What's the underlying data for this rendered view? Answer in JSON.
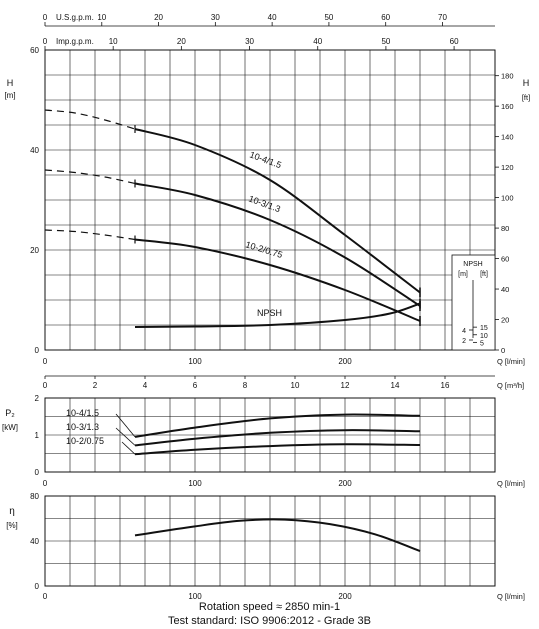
{
  "chart_data": [
    {
      "type": "line",
      "panel": "head",
      "ylabel": "H",
      "yunit": "[m]",
      "ylim": [
        0,
        60
      ],
      "yticks": [
        0,
        20,
        40,
        60
      ],
      "y2label": "H",
      "y2unit": "[ft]",
      "y2lim": [
        0,
        196.85
      ],
      "y2ticks": [
        0,
        20,
        40,
        60,
        80,
        100,
        120,
        140,
        160,
        180
      ],
      "xlabel": "Q [l/min]",
      "xlim": [
        0,
        300
      ],
      "xticks": [
        0,
        100,
        200
      ],
      "top_axis_1": {
        "label": "U.S.g.p.m.",
        "lim": [
          0,
          79.25
        ],
        "ticks": [
          0,
          10,
          20,
          30,
          40,
          50,
          60,
          70
        ]
      },
      "top_axis_2": {
        "label": "Imp.g.p.m.",
        "lim": [
          0,
          66.0
        ],
        "ticks": [
          0,
          10,
          20,
          30,
          40,
          50,
          60
        ]
      },
      "bottom_axis_2": {
        "label": "Q [m³/h]",
        "lim": [
          0,
          18
        ],
        "ticks": [
          0,
          2,
          4,
          6,
          8,
          10,
          12,
          14,
          16
        ]
      },
      "series": [
        {
          "name": "10-4/1.5",
          "dashed": {
            "x": [
              0,
              20,
              40,
              60
            ],
            "y": [
              48.0,
              47.4,
              46.0,
              44.2
            ]
          },
          "x": [
            60,
            100,
            150,
            200,
            250
          ],
          "y": [
            44.2,
            41.0,
            34.0,
            23.0,
            11.5
          ]
        },
        {
          "name": "10-3/1.3",
          "dashed": {
            "x": [
              0,
              20,
              40,
              60
            ],
            "y": [
              36.0,
              35.5,
              34.6,
              33.3
            ]
          },
          "x": [
            60,
            100,
            150,
            200,
            250
          ],
          "y": [
            33.3,
            31.0,
            26.0,
            18.5,
            8.8
          ]
        },
        {
          "name": "10-2/0.75",
          "dashed": {
            "x": [
              0,
              20,
              40,
              60
            ],
            "y": [
              24.0,
              23.7,
              23.0,
              22.1
            ]
          },
          "x": [
            60,
            100,
            150,
            200,
            250
          ],
          "y": [
            22.1,
            20.6,
            17.0,
            12.0,
            5.8
          ]
        },
        {
          "name": "NPSH",
          "x": [
            60,
            100,
            150,
            200,
            230,
            250
          ],
          "y": [
            4.6,
            4.7,
            5.0,
            6.0,
            7.3,
            9.3
          ]
        }
      ],
      "npsh_axis": {
        "title": "NPSH",
        "units": [
          "[m]",
          "[ft]"
        ],
        "m_ticks": [
          2,
          4
        ],
        "ft_ticks": [
          5,
          10,
          15
        ]
      }
    },
    {
      "type": "line",
      "panel": "power",
      "ylabel": "P₂",
      "yunit": "[kW]",
      "ylim": [
        0,
        2
      ],
      "yticks": [
        0,
        1,
        2
      ],
      "xlabel": "Q [l/min]",
      "xlim": [
        0,
        300
      ],
      "xticks": [
        0,
        100,
        200
      ],
      "series": [
        {
          "name": "10-4/1.5",
          "x": [
            60,
            100,
            150,
            200,
            250
          ],
          "y": [
            0.95,
            1.2,
            1.45,
            1.55,
            1.52
          ]
        },
        {
          "name": "10-3/1.3",
          "x": [
            60,
            100,
            150,
            200,
            250
          ],
          "y": [
            0.72,
            0.9,
            1.06,
            1.13,
            1.1
          ]
        },
        {
          "name": "10-2/0.75",
          "x": [
            60,
            100,
            150,
            200,
            250
          ],
          "y": [
            0.48,
            0.6,
            0.7,
            0.75,
            0.73
          ]
        }
      ]
    },
    {
      "type": "line",
      "panel": "efficiency",
      "ylabel": "η",
      "yunit": "[%]",
      "ylim": [
        0,
        80
      ],
      "yticks": [
        0,
        40,
        80
      ],
      "xlabel": "Q [l/min]",
      "xlim": [
        0,
        300
      ],
      "xticks": [
        0,
        100,
        200
      ],
      "series": [
        {
          "x": [
            60,
            100,
            130,
            160,
            190,
            220,
            250
          ],
          "y": [
            45,
            53,
            58,
            59,
            55,
            46,
            31
          ]
        }
      ]
    }
  ],
  "footer": {
    "rotation": "Rotation speed ≈ 2850 min-1",
    "standard": "Test standard: ISO 9906:2012 - Grade 3B"
  }
}
